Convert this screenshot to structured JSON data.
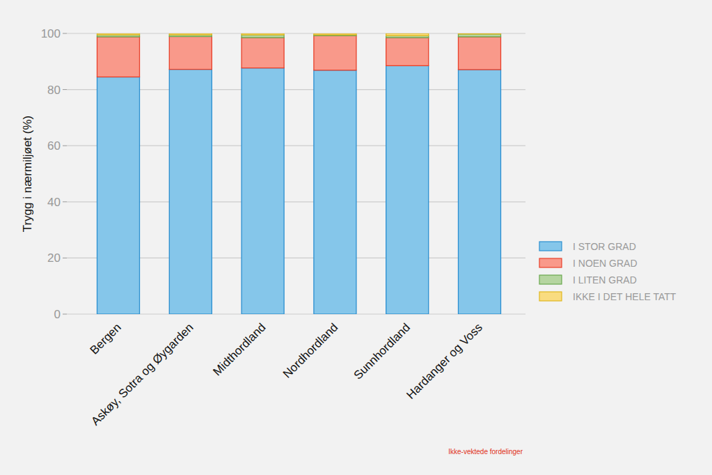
{
  "chart_data": {
    "type": "bar",
    "stacked": true,
    "y_label": "Trygg i nærmiljøet (%)",
    "annotations": [
      "Ikke-vektede fordelinger"
    ],
    "categories": [
      "Bergen",
      "Askøy, Sotra og Øygarden",
      "Midthordland",
      "Nordhordland",
      "Sunnhordland",
      "Hardanger og Voss"
    ],
    "series": [
      {
        "name": "I STOR GRAD",
        "color": "#85c6ea",
        "values": [
          84.5,
          87.2,
          87.7,
          86.9,
          88.5,
          87.1
        ]
      },
      {
        "name": "I NOEN GRAD",
        "color": "#f9998a",
        "values": [
          14.3,
          11.7,
          10.8,
          12.3,
          10.0,
          11.7
        ]
      },
      {
        "name": "I LITEN GRAD",
        "color": "#b5d5a0",
        "values": [
          0.7,
          0.6,
          1.0,
          0.3,
          0.7,
          1.0
        ]
      },
      {
        "name": "IKKE I DET HELE TATT",
        "color": "#f9dc80",
        "values": [
          0.5,
          0.5,
          0.5,
          0.5,
          0.8,
          0.2
        ]
      }
    ],
    "ylim": [
      0,
      100
    ],
    "yticks": [
      0,
      20,
      40,
      60,
      80,
      100
    ],
    "grid": true,
    "legend": "right"
  }
}
